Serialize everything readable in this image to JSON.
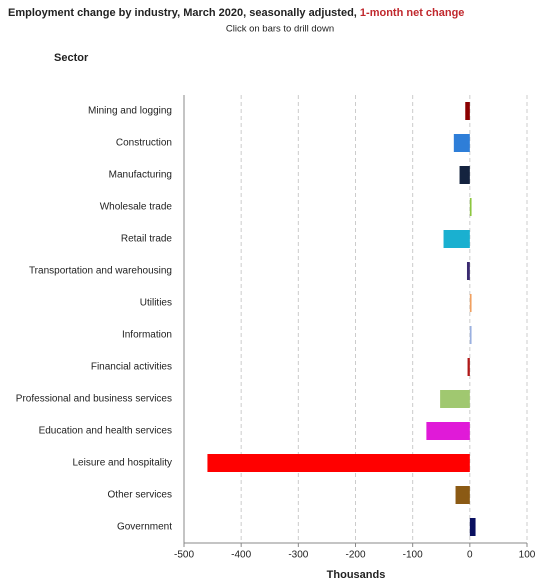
{
  "chart_data": {
    "type": "bar",
    "orientation": "horizontal",
    "title": "Employment change by industry, March 2020, seasonally adjusted, ",
    "title_highlight": "1-month net change",
    "subtitle": "Click on bars to drill down",
    "y_label": "Sector",
    "x_label": "Thousands",
    "categories": [
      "Mining and logging",
      "Construction",
      "Manufacturing",
      "Wholesale trade",
      "Retail trade",
      "Transportation and warehousing",
      "Utilities",
      "Information",
      "Financial activities",
      "Professional and business services",
      "Education and health services",
      "Leisure and hospitality",
      "Other services",
      "Government"
    ],
    "values": [
      -8,
      -28,
      -18,
      3,
      -46,
      -5,
      3,
      3,
      -4,
      -52,
      -76,
      -459,
      -25,
      10
    ],
    "colors": [
      "#8b0000",
      "#2e7ed8",
      "#14233f",
      "#8dc63f",
      "#1ab0d0",
      "#3a2a70",
      "#f0a060",
      "#9ab0e0",
      "#b01818",
      "#a0c870",
      "#e01ad8",
      "#ff0000",
      "#8b5a14",
      "#0a1060"
    ],
    "xlim": [
      -500,
      100
    ],
    "xticks": [
      -500,
      -400,
      -300,
      -200,
      -100,
      0,
      100
    ],
    "grid": true
  }
}
